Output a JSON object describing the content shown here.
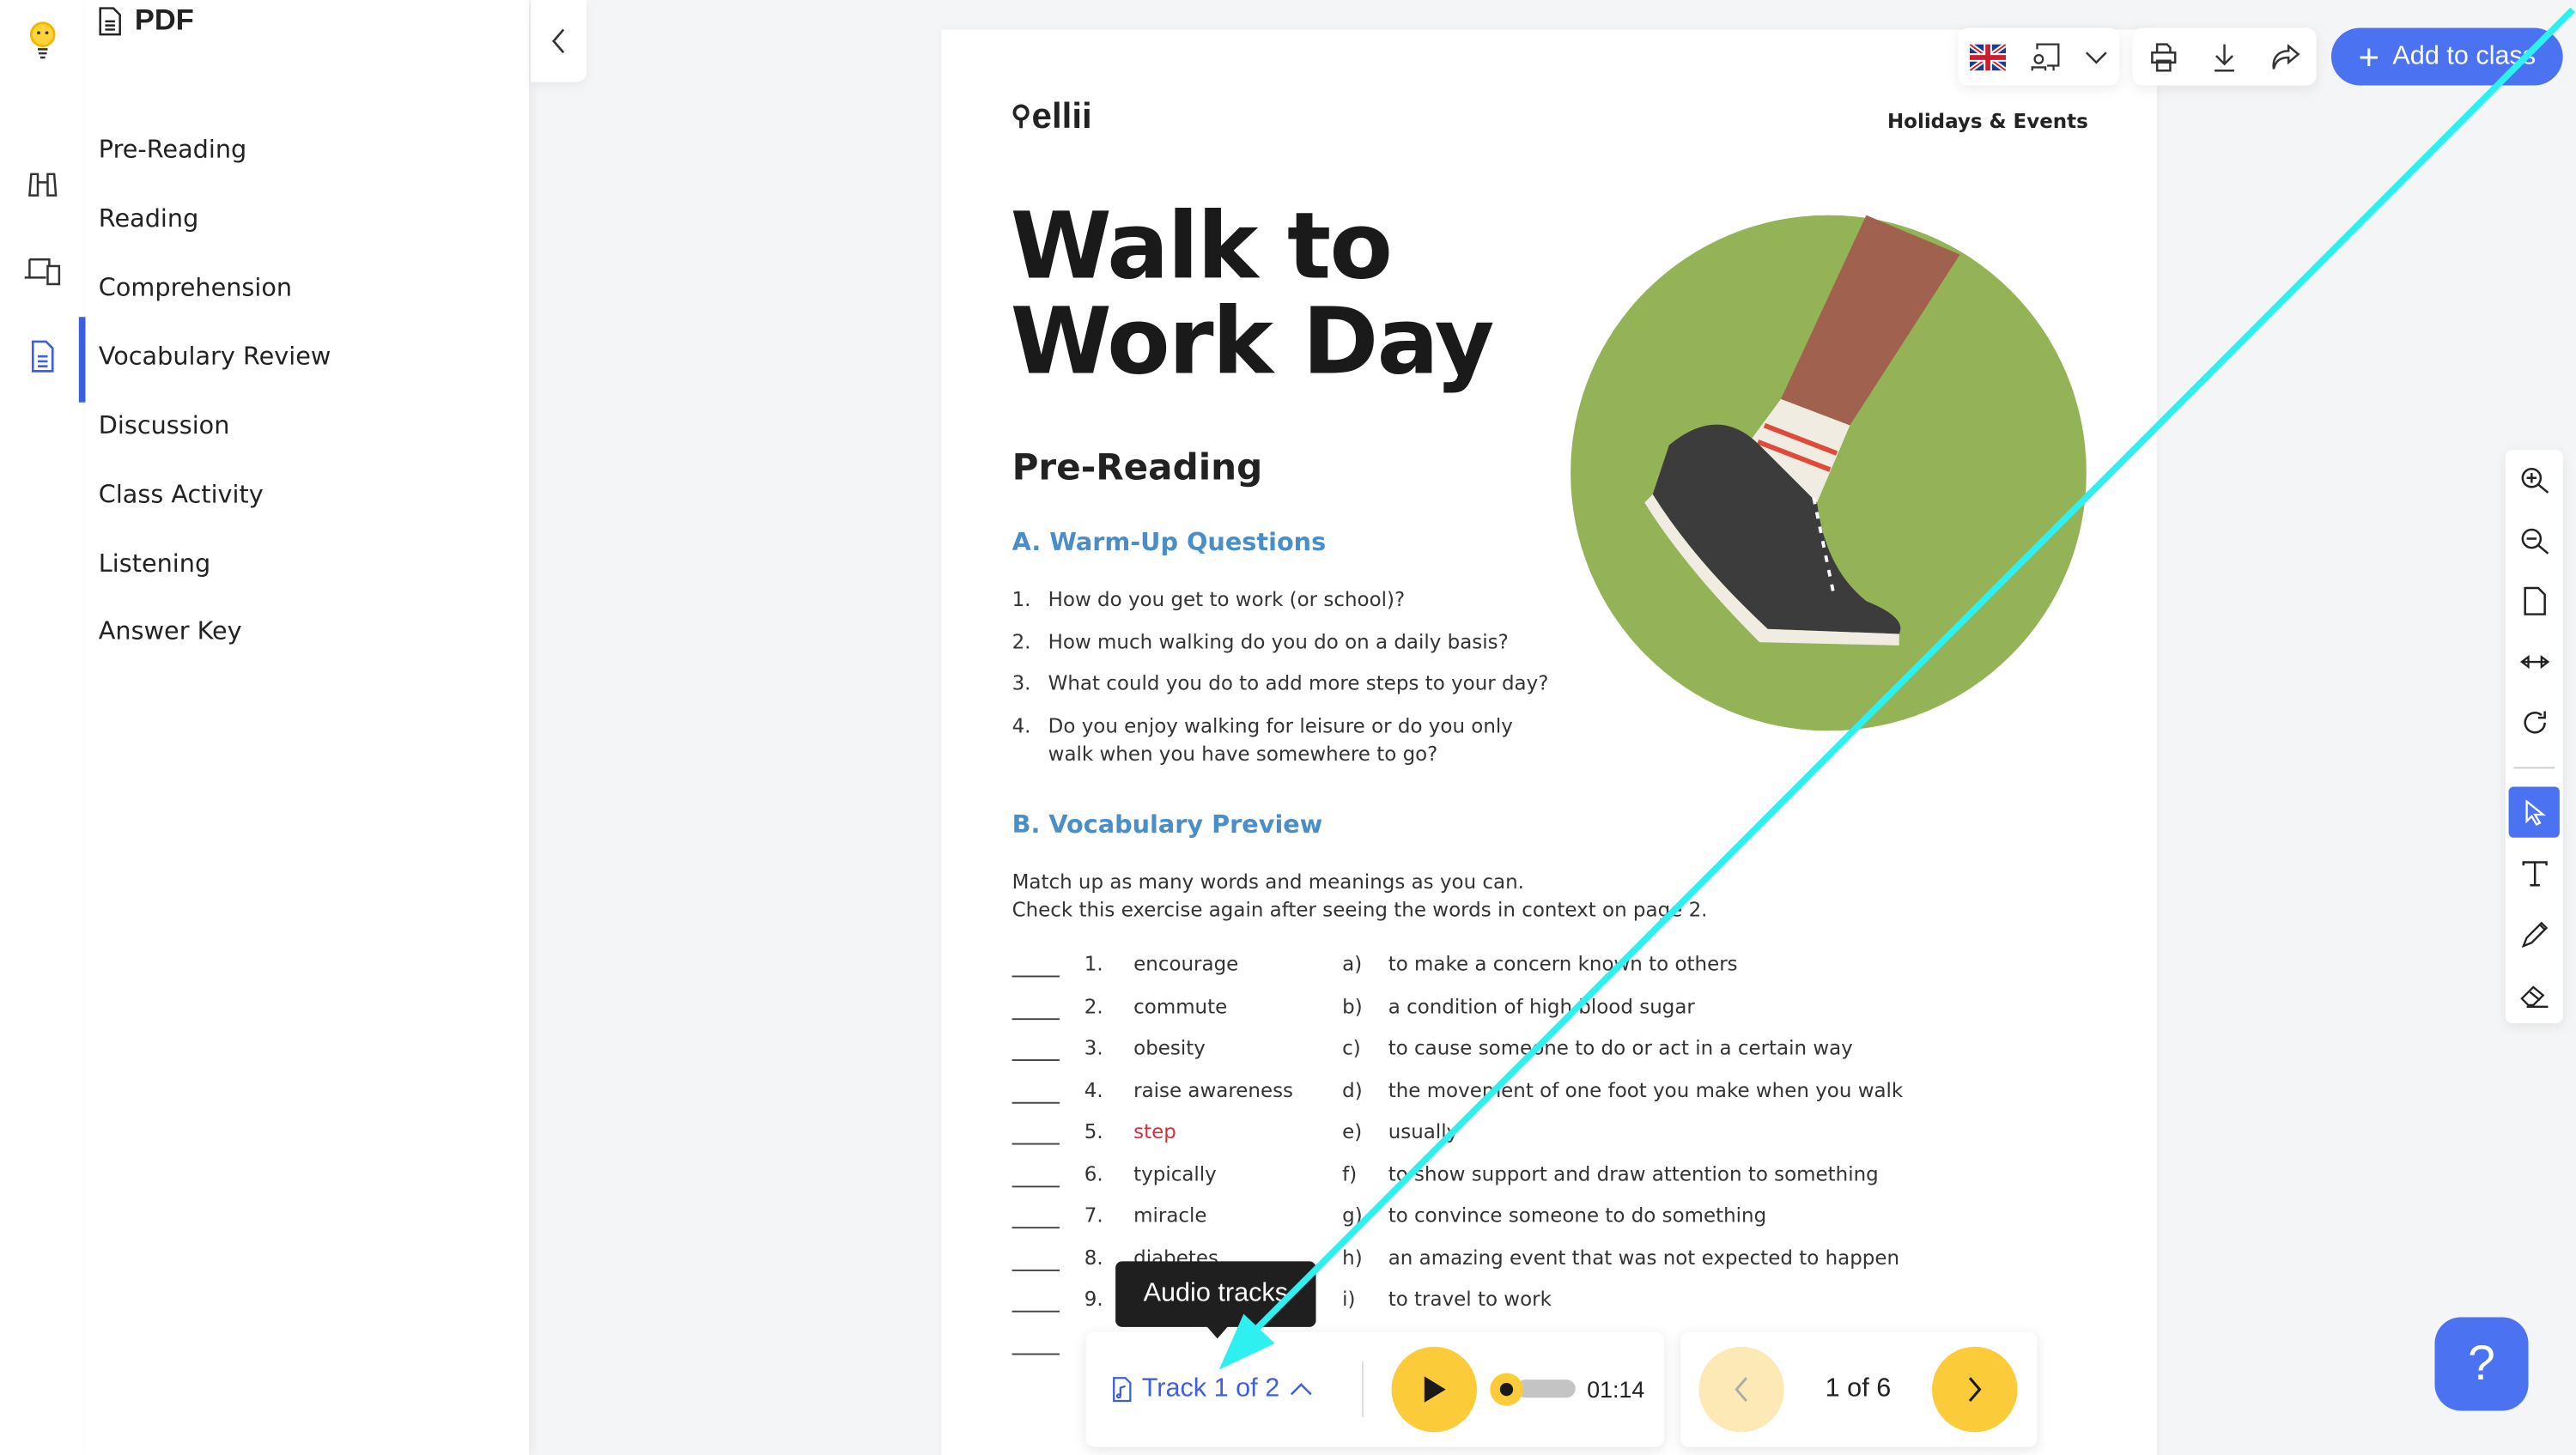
{
  "sidebar": {
    "header": "PDF",
    "items": [
      {
        "label": "Pre-Reading"
      },
      {
        "label": "Reading"
      },
      {
        "label": "Comprehension"
      },
      {
        "label": "Vocabulary Review",
        "active": true
      },
      {
        "label": "Discussion"
      },
      {
        "label": "Class Activity"
      },
      {
        "label": "Listening"
      },
      {
        "label": "Answer Key"
      }
    ]
  },
  "toolbar": {
    "add_label": "Add to class",
    "accent": "#4b72f0"
  },
  "document": {
    "logo": "ellii",
    "category": "Holidays & Events",
    "title_line1": "Walk to",
    "title_line2": "Work Day",
    "section": "Pre-Reading",
    "part_a": "A. Warm-Up Questions",
    "questions": [
      {
        "n": "1.",
        "text": "How do you get to work (or school)?"
      },
      {
        "n": "2.",
        "text": "How much walking do you do on a daily basis?"
      },
      {
        "n": "3.",
        "text": "What could you do to add more steps to your day?"
      },
      {
        "n": "4.",
        "text": "Do you enjoy walking for leisure or do you only",
        "text2": "walk when you have somewhere to go?"
      }
    ],
    "part_b": "B. Vocabulary Preview",
    "instructions1": "Match up as many words and meanings as you can.",
    "instructions2": "Check this exercise again after seeing the words in context on page 2.",
    "vocab": [
      {
        "n": "1.",
        "word": "encourage",
        "l": "a)",
        "def": "to make a concern known to others"
      },
      {
        "n": "2.",
        "word": "commute",
        "l": "b)",
        "def": "a condition of high blood sugar"
      },
      {
        "n": "3.",
        "word": "obesity",
        "l": "c)",
        "def": "to cause someone to do or act in a certain way"
      },
      {
        "n": "4.",
        "word": "raise awareness",
        "l": "d)",
        "def": "the movement of one foot you make when you walk"
      },
      {
        "n": "5.",
        "word": "step",
        "l": "e)",
        "def": "usually"
      },
      {
        "n": "6.",
        "word": "typically",
        "l": "f)",
        "def": "to show support and draw attention to something"
      },
      {
        "n": "7.",
        "word": "miracle",
        "l": "g)",
        "def": "to convince someone to do something"
      },
      {
        "n": "8.",
        "word": "diabetes",
        "l": "h)",
        "def": "an amazing event that was not expected to happen"
      },
      {
        "n": "9.",
        "word": "",
        "l": "i)",
        "def": "to travel to work"
      }
    ],
    "highlight_color": "#d0323c"
  },
  "audio": {
    "tooltip": "Audio tracks",
    "track_label": "Track 1 of 2",
    "time": "01:14",
    "progress": 0
  },
  "pager": {
    "label": "1 of 6"
  },
  "help": {
    "label": "?"
  }
}
